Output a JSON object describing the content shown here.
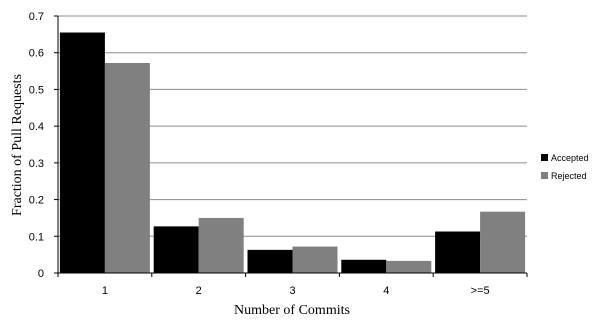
{
  "chart_data": {
    "type": "bar",
    "categories": [
      "1",
      "2",
      "3",
      "4",
      ">=5"
    ],
    "series": [
      {
        "name": "Accepted",
        "color": "#000000",
        "values": [
          0.655,
          0.127,
          0.063,
          0.036,
          0.113
        ]
      },
      {
        "name": "Rejected",
        "color": "#808080",
        "values": [
          0.572,
          0.15,
          0.072,
          0.033,
          0.167
        ]
      }
    ],
    "xlabel": "Number of Commits",
    "ylabel": "Fraction of Pull Requests",
    "ylim": [
      0,
      0.7
    ],
    "yticks": [
      "0",
      "0.1",
      "0.2",
      "0.3",
      "0.4",
      "0.5",
      "0.6",
      "0.7"
    ],
    "grid": true,
    "legend_position": "right"
  }
}
